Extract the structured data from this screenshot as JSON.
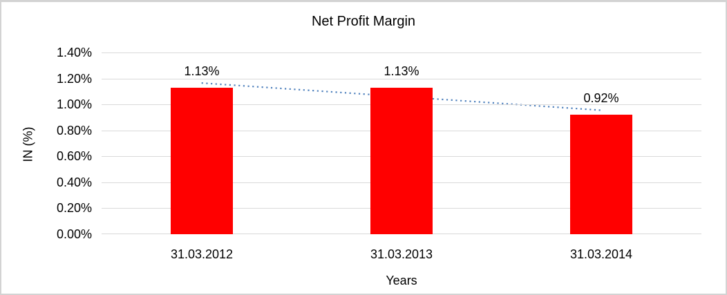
{
  "window": {
    "background_color": "#ffffff",
    "frame_border_color": "#d3d3d3"
  },
  "chart_data": {
    "type": "bar",
    "title": "Net Profit Margin",
    "xlabel": "Years",
    "ylabel": "IN (%)",
    "categories": [
      "31.03.2012",
      "31.03.2013",
      "31.03.2014"
    ],
    "series": [
      {
        "name": "Net Profit Margin",
        "values": [
          1.13,
          1.13,
          0.92
        ],
        "color": "#ff0000"
      }
    ],
    "data_labels": [
      "1.13%",
      "1.13%",
      "0.92%"
    ],
    "ylim": [
      0,
      1.4
    ],
    "yticks": [
      {
        "label": "1.40%",
        "value": 1.4
      },
      {
        "label": "1.20%",
        "value": 1.2
      },
      {
        "label": "1.00%",
        "value": 1.0
      },
      {
        "label": "0.80%",
        "value": 0.8
      },
      {
        "label": "0.60%",
        "value": 0.6
      },
      {
        "label": "0.40%",
        "value": 0.4
      },
      {
        "label": "0.20%",
        "value": 0.2
      },
      {
        "label": "0.00%",
        "value": 0.0
      }
    ],
    "grid": true,
    "gridline_color": "#d9d9d9",
    "legend": false,
    "trendline": {
      "type": "linear",
      "style": "dotted",
      "color": "#4f81bd"
    }
  }
}
